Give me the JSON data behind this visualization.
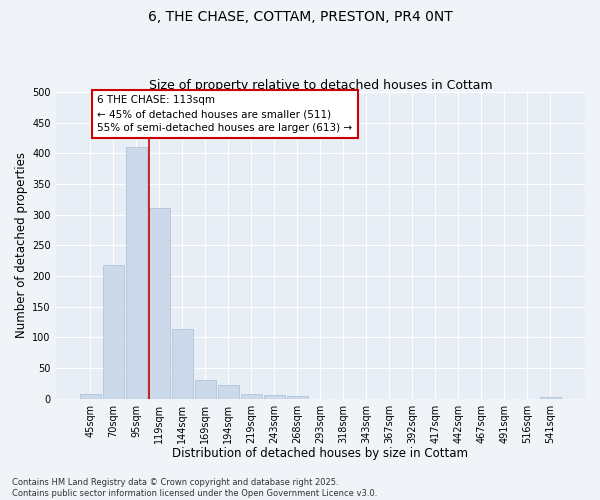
{
  "title": "6, THE CHASE, COTTAM, PRESTON, PR4 0NT",
  "subtitle": "Size of property relative to detached houses in Cottam",
  "xlabel": "Distribution of detached houses by size in Cottam",
  "ylabel": "Number of detached properties",
  "categories": [
    "45sqm",
    "70sqm",
    "95sqm",
    "119sqm",
    "144sqm",
    "169sqm",
    "194sqm",
    "219sqm",
    "243sqm",
    "268sqm",
    "293sqm",
    "318sqm",
    "343sqm",
    "367sqm",
    "392sqm",
    "417sqm",
    "442sqm",
    "467sqm",
    "491sqm",
    "516sqm",
    "541sqm"
  ],
  "values": [
    8,
    218,
    411,
    311,
    114,
    30,
    23,
    8,
    6,
    4,
    0,
    0,
    0,
    0,
    0,
    0,
    0,
    0,
    0,
    0,
    2
  ],
  "bar_color": "#ccd9ea",
  "bar_edge_color": "#a8bfd4",
  "vline_index": 3,
  "vline_color": "#cc0000",
  "annotation_text": "6 THE CHASE: 113sqm\n← 45% of detached houses are smaller (511)\n55% of semi-detached houses are larger (613) →",
  "annotation_box_edgecolor": "#cc0000",
  "ylim": [
    0,
    500
  ],
  "yticks": [
    0,
    50,
    100,
    150,
    200,
    250,
    300,
    350,
    400,
    450,
    500
  ],
  "background_color": "#f0f4f8",
  "plot_background": "#e8eef5",
  "grid_color": "#ffffff",
  "footnote": "Contains HM Land Registry data © Crown copyright and database right 2025.\nContains public sector information licensed under the Open Government Licence v3.0.",
  "title_fontsize": 10,
  "subtitle_fontsize": 9,
  "label_fontsize": 8.5,
  "tick_fontsize": 7,
  "annot_fontsize": 7.5,
  "footnote_fontsize": 6
}
